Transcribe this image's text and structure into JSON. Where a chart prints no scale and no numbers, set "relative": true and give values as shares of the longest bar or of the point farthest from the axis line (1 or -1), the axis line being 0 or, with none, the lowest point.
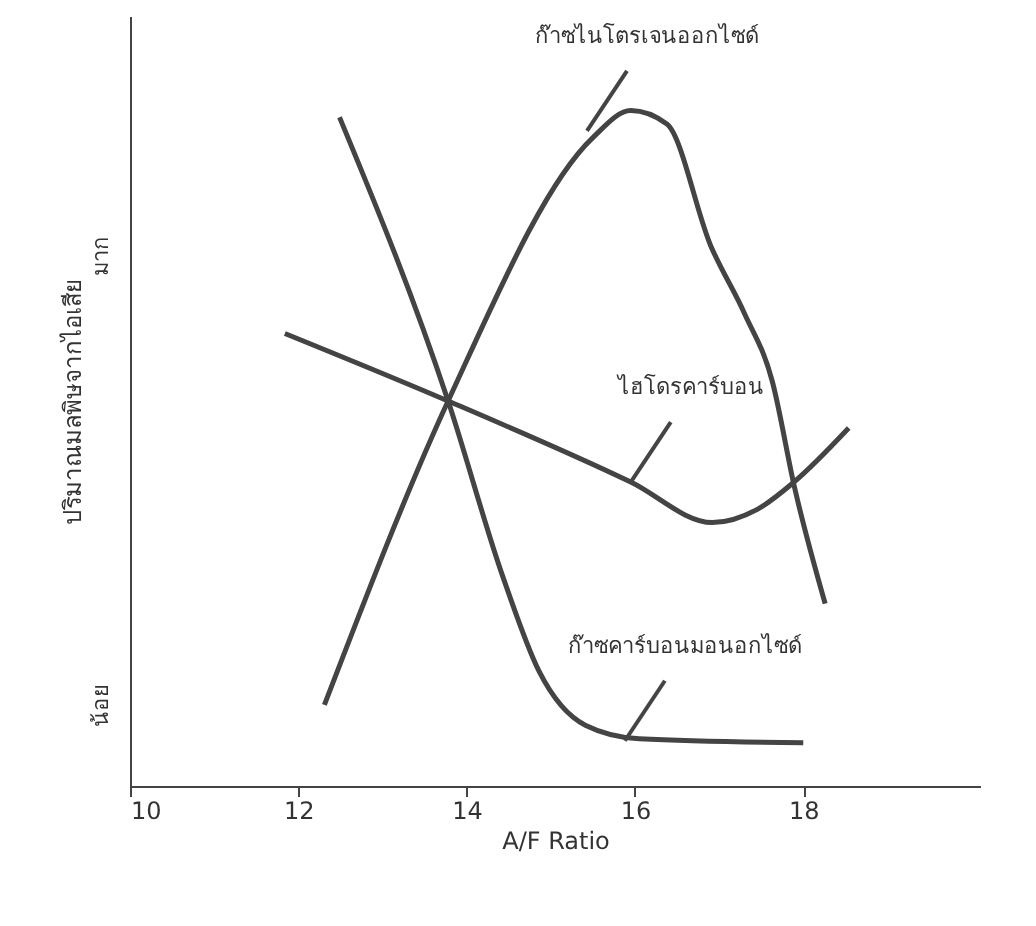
{
  "chart_data": {
    "type": "line",
    "relative": true,
    "xlabel": "A/F Ratio",
    "ylabel": "ปริมาณมลพิษจากไอเสีย",
    "xlim": [
      10,
      20.1
    ],
    "xticks": [
      10,
      12,
      14,
      16,
      18
    ],
    "grid": false,
    "marker": "none",
    "line_style": "solid",
    "series": [
      {
        "color": "#444444",
        "x": [
          12.31,
          13.78,
          15.5,
          15.95,
          16.38,
          16.9,
          17.3,
          17.63,
          17.9,
          18.26
        ],
        "values": [
          0.12,
          0.57,
          0.96,
          1.0,
          0.98,
          0.8,
          0.7,
          0.6,
          0.44,
          0.27
        ]
      },
      {
        "color": "#444444",
        "x": [
          11.84,
          13.78,
          15.95,
          16.92,
          17.46,
          17.89,
          18.54
        ],
        "values": [
          0.67,
          0.57,
          0.45,
          0.39,
          0.41,
          0.45,
          0.53
        ]
      },
      {
        "color": "#444444",
        "x": [
          12.49,
          13.78,
          14.43,
          14.86,
          15.41,
          16.05,
          18.0
        ],
        "values": [
          0.99,
          0.57,
          0.31,
          0.17,
          0.09,
          0.07,
          0.064
        ]
      }
    ],
    "annotations": [
      {
        "text": "ก๊าซไนโตรเจนออกไซด์",
        "x": 15.43,
        "y": 0.97
      },
      {
        "text": "ไฮโดรคาร์บอน",
        "x": 15.95,
        "y": 0.45
      },
      {
        "text": "ก๊าซคาร์บอนมอนอกไซด์",
        "x": 15.88,
        "y": 0.067
      },
      "น้อย",
      "มาก"
    ]
  }
}
